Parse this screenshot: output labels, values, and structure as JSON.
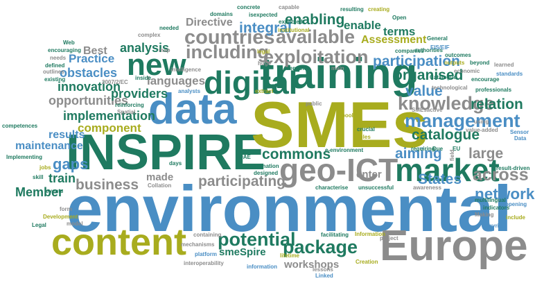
{
  "palette": {
    "blue": "#4a8ec4",
    "teal": "#1f7a60",
    "olive": "#a8ac1e",
    "gray": "#8c8c8c",
    "sky": "#2c88cc"
  },
  "words": [
    {
      "text": "environmental",
      "color": "#4a8ec4",
      "orientation": "horizontal"
    },
    {
      "text": "INSPIRE",
      "color": "#1f7a60",
      "orientation": "horizontal"
    },
    {
      "text": "SMEs",
      "color": "#a8ac1e",
      "orientation": "horizontal"
    },
    {
      "text": "data",
      "color": "#4a8ec4",
      "orientation": "horizontal"
    },
    {
      "text": "Europe",
      "color": "#8c8c8c",
      "orientation": "horizontal"
    },
    {
      "text": "content",
      "color": "#a8ac1e",
      "orientation": "horizontal"
    },
    {
      "text": "training",
      "color": "#1f7a60",
      "orientation": "horizontal"
    },
    {
      "text": "market",
      "color": "#1f7a60",
      "orientation": "horizontal"
    },
    {
      "text": "geo-ICT",
      "color": "#8c8c8c",
      "orientation": "horizontal"
    },
    {
      "text": "digital",
      "color": "#1f7a60",
      "orientation": "horizontal"
    },
    {
      "text": "new",
      "color": "#1f7a60",
      "orientation": "horizontal"
    },
    {
      "text": "exploitation",
      "color": "#8c8c8c",
      "orientation": "horizontal"
    },
    {
      "text": "available",
      "color": "#8c8c8c",
      "orientation": "horizontal"
    },
    {
      "text": "countries",
      "color": "#8c8c8c",
      "orientation": "horizontal"
    },
    {
      "text": "including",
      "color": "#8c8c8c",
      "orientation": "horizontal"
    },
    {
      "text": "knowledge",
      "color": "#8c8c8c",
      "orientation": "horizontal"
    },
    {
      "text": "management",
      "color": "#4a8ec4",
      "orientation": "horizontal"
    },
    {
      "text": "potential",
      "color": "#1f7a60",
      "orientation": "horizontal"
    },
    {
      "text": "package",
      "color": "#1f7a60",
      "orientation": "horizontal"
    },
    {
      "text": "across",
      "color": "#8c8c8c",
      "orientation": "horizontal"
    },
    {
      "text": "network",
      "color": "#4a8ec4",
      "orientation": "horizontal"
    },
    {
      "text": "business",
      "color": "#8c8c8c",
      "orientation": "horizontal"
    },
    {
      "text": "participating",
      "color": "#8c8c8c",
      "orientation": "horizontal"
    },
    {
      "text": "participation",
      "color": "#4a8ec4",
      "orientation": "horizontal"
    },
    {
      "text": "enabling",
      "color": "#1f7a60",
      "orientation": "horizontal"
    },
    {
      "text": "integral",
      "color": "#4a8ec4",
      "orientation": "horizontal"
    },
    {
      "text": "Directive",
      "color": "#8c8c8c",
      "orientation": "horizontal"
    },
    {
      "text": "organised",
      "color": "#1f7a60",
      "orientation": "horizontal"
    },
    {
      "text": "catalogue",
      "color": "#1f7a60",
      "orientation": "horizontal"
    },
    {
      "text": "commons",
      "color": "#1f7a60",
      "orientation": "horizontal"
    },
    {
      "text": "large",
      "color": "#8c8c8c",
      "orientation": "horizontal"
    },
    {
      "text": "States",
      "color": "#4a8ec4",
      "orientation": "horizontal"
    },
    {
      "text": "aiming",
      "color": "#4a8ec4",
      "orientation": "horizontal"
    },
    {
      "text": "value",
      "color": "#4a8ec4",
      "orientation": "horizontal"
    },
    {
      "text": "relation",
      "color": "#1f7a60",
      "orientation": "horizontal"
    },
    {
      "text": "analysis",
      "color": "#1f7a60",
      "orientation": "horizontal"
    },
    {
      "text": "innovation",
      "color": "#1f7a60",
      "orientation": "horizontal"
    },
    {
      "text": "opportunities",
      "color": "#8c8c8c",
      "orientation": "horizontal"
    },
    {
      "text": "implementation",
      "color": "#1f7a60",
      "orientation": "horizontal"
    },
    {
      "text": "component",
      "color": "#a8ac1e",
      "orientation": "horizontal"
    },
    {
      "text": "results",
      "color": "#4a8ec4",
      "orientation": "horizontal"
    },
    {
      "text": "maintenance",
      "color": "#4a8ec4",
      "orientation": "horizontal"
    },
    {
      "text": "gaps",
      "color": "#4a8ec4",
      "orientation": "horizontal"
    },
    {
      "text": "train",
      "color": "#1f7a60",
      "orientation": "horizontal"
    },
    {
      "text": "Member",
      "color": "#1f7a60",
      "orientation": "horizontal"
    },
    {
      "text": "providers",
      "color": "#1f7a60",
      "orientation": "horizontal"
    },
    {
      "text": "languages",
      "color": "#8c8c8c",
      "orientation": "horizontal"
    },
    {
      "text": "obstacles",
      "color": "#4a8ec4",
      "orientation": "horizontal"
    },
    {
      "text": "Practice",
      "color": "#4a8ec4",
      "orientation": "horizontal"
    },
    {
      "text": "Best",
      "color": "#8c8c8c",
      "orientation": "horizontal"
    },
    {
      "text": "terms",
      "color": "#1f7a60",
      "orientation": "horizontal"
    },
    {
      "text": "Assessment",
      "color": "#a8ac1e",
      "orientation": "horizontal"
    },
    {
      "text": "enable",
      "color": "#1f7a60",
      "orientation": "horizontal"
    },
    {
      "text": "workshops",
      "color": "#8c8c8c",
      "orientation": "horizontal"
    },
    {
      "text": "smeSpire",
      "color": "#1f7a60",
      "orientation": "horizontal"
    },
    {
      "text": "made",
      "color": "#8c8c8c",
      "orientation": "horizontal"
    },
    {
      "text": "enter",
      "color": "#8c8c8c",
      "orientation": "horizontal"
    },
    {
      "text": "concrete",
      "color": "#1f7a60",
      "orientation": "horizontal"
    },
    {
      "text": "isexpected",
      "color": "#1f7a60",
      "orientation": "horizontal"
    },
    {
      "text": "capable",
      "color": "#8c8c8c",
      "orientation": "horizontal"
    },
    {
      "text": "resulting",
      "color": "#1f7a60",
      "orientation": "horizontal"
    },
    {
      "text": "creating",
      "color": "#a8ac1e",
      "orientation": "horizontal"
    },
    {
      "text": "domains",
      "color": "#1f7a60",
      "orientation": "horizontal"
    },
    {
      "text": "Open",
      "color": "#1f7a60",
      "orientation": "horizontal"
    },
    {
      "text": "expected",
      "color": "#1f7a60",
      "orientation": "horizontal"
    },
    {
      "text": "institutional",
      "color": "#a8ac1e",
      "orientation": "horizontal"
    },
    {
      "text": "needed",
      "color": "#1f7a60",
      "orientation": "horizontal"
    },
    {
      "text": "complex",
      "color": "#8c8c8c",
      "orientation": "horizontal"
    },
    {
      "text": "General",
      "color": "#1f7a60",
      "orientation": "horizontal"
    },
    {
      "text": "Web",
      "color": "#1f7a60",
      "orientation": "horizontal"
    },
    {
      "text": "encouraging",
      "color": "#1f7a60",
      "orientation": "horizontal"
    },
    {
      "text": "needs",
      "color": "#8c8c8c",
      "orientation": "horizontal"
    },
    {
      "text": "defined",
      "color": "#1f7a60",
      "orientation": "horizontal"
    },
    {
      "text": "outlines",
      "color": "#8c8c8c",
      "orientation": "horizontal"
    },
    {
      "text": "existing",
      "color": "#1f7a60",
      "orientation": "horizontal"
    },
    {
      "text": "map",
      "color": "#8c8c8c",
      "orientation": "horizontal"
    },
    {
      "text": "legal",
      "color": "#a8ac1e",
      "orientation": "horizontal"
    },
    {
      "text": "companies",
      "color": "#1f7a60",
      "orientation": "horizontal"
    },
    {
      "text": "authorities",
      "color": "#1f7a60",
      "orientation": "horizontal"
    },
    {
      "text": "EIS/EIF",
      "color": "#4a8ec4",
      "orientation": "horizontal"
    },
    {
      "text": "outcomes",
      "color": "#1f7a60",
      "orientation": "horizontal"
    },
    {
      "text": "huge",
      "color": "#8c8c8c",
      "orientation": "horizontal"
    },
    {
      "text": "demand",
      "color": "#1f7a60",
      "orientation": "horizontal"
    },
    {
      "text": "main",
      "color": "#8c8c8c",
      "orientation": "horizontal"
    },
    {
      "text": "outputs",
      "color": "#a8ac1e",
      "orientation": "horizontal"
    },
    {
      "text": "beyond",
      "color": "#1f7a60",
      "orientation": "horizontal"
    },
    {
      "text": "learned",
      "color": "#8c8c8c",
      "orientation": "horizontal"
    },
    {
      "text": "intelligence",
      "color": "#8c8c8c",
      "orientation": "horizontal"
    },
    {
      "text": "economic",
      "color": "#8c8c8c",
      "orientation": "horizontal"
    },
    {
      "text": "standards",
      "color": "#4a8ec4",
      "orientation": "horizontal"
    },
    {
      "text": "Catalogue",
      "color": "#1f7a60",
      "orientation": "horizontal"
    },
    {
      "text": "encourage",
      "color": "#1f7a60",
      "orientation": "horizontal"
    },
    {
      "text": "2007/2/EC",
      "color": "#8c8c8c",
      "orientation": "horizontal"
    },
    {
      "text": "inside",
      "color": "#1f7a60",
      "orientation": "horizontal"
    },
    {
      "text": "technological",
      "color": "#8c8c8c",
      "orientation": "horizontal"
    },
    {
      "text": "professionals",
      "color": "#1f7a60",
      "orientation": "horizontal"
    },
    {
      "text": "analysts",
      "color": "#4a8ec4",
      "orientation": "horizontal"
    },
    {
      "text": "extract",
      "color": "#a8ac1e",
      "orientation": "horizontal"
    },
    {
      "text": "public",
      "color": "#8c8c8c",
      "orientation": "horizontal"
    },
    {
      "text": "reinforcing",
      "color": "#1f7a60",
      "orientation": "horizontal"
    },
    {
      "text": "Spatial",
      "color": "#8c8c8c",
      "orientation": "horizontal"
    },
    {
      "text": "competences",
      "color": "#1f7a60",
      "orientation": "horizontal"
    },
    {
      "text": "pools",
      "color": "#a8ac1e",
      "orientation": "horizontal"
    },
    {
      "text": "SMEsactive",
      "color": "#8c8c8c",
      "orientation": "horizontal"
    },
    {
      "text": "using",
      "color": "#8c8c8c",
      "orientation": "horizontal"
    },
    {
      "text": "value-added",
      "color": "#8c8c8c",
      "orientation": "horizontal"
    },
    {
      "text": "crucial",
      "color": "#1f7a60",
      "orientation": "horizontal"
    },
    {
      "text": "Rules",
      "color": "#a8ac1e",
      "orientation": "horizontal"
    },
    {
      "text": "Sensor",
      "color": "#4a8ec4",
      "orientation": "horizontal"
    },
    {
      "text": "Data",
      "color": "#4a8ec4",
      "orientation": "horizontal"
    },
    {
      "text": "DAE",
      "color": "#1f7a60",
      "orientation": "horizontal"
    },
    {
      "text": "Implementing",
      "color": "#1f7a60",
      "orientation": "horizontal"
    },
    {
      "text": "jobs",
      "color": "#a8ac1e",
      "orientation": "horizontal"
    },
    {
      "text": "skill",
      "color": "#1f7a60",
      "orientation": "horizontal"
    },
    {
      "text": "e-environment",
      "color": "#1f7a60",
      "orientation": "horizontal"
    },
    {
      "text": "requiring",
      "color": "#1f7a60",
      "orientation": "horizontal"
    },
    {
      "text": "EU",
      "color": "#1f7a60",
      "orientation": "horizontal"
    },
    {
      "text": "days",
      "color": "#1f7a60",
      "orientation": "horizontal"
    },
    {
      "text": "Dissemination",
      "color": "#1f7a60",
      "orientation": "horizontal"
    },
    {
      "text": "designed",
      "color": "#1f7a60",
      "orientation": "horizontal"
    },
    {
      "text": "Collation",
      "color": "#8c8c8c",
      "orientation": "horizontal"
    },
    {
      "text": "events",
      "color": "#1f7a60",
      "orientation": "horizontal"
    },
    {
      "text": "characterise",
      "color": "#1f7a60",
      "orientation": "horizontal"
    },
    {
      "text": "unsuccessful",
      "color": "#1f7a60",
      "orientation": "horizontal"
    },
    {
      "text": "awareness",
      "color": "#8c8c8c",
      "orientation": "horizontal"
    },
    {
      "text": "result-driven",
      "color": "#1f7a60",
      "orientation": "horizontal"
    },
    {
      "text": "multilingual",
      "color": "#1f7a60",
      "orientation": "horizontal"
    },
    {
      "text": "indicators",
      "color": "#1f7a60",
      "orientation": "horizontal"
    },
    {
      "text": "opening",
      "color": "#4a8ec4",
      "orientation": "horizontal"
    },
    {
      "text": "form",
      "color": "#8c8c8c",
      "orientation": "horizontal"
    },
    {
      "text": "Development",
      "color": "#a8ac1e",
      "orientation": "horizontal"
    },
    {
      "text": "Legal",
      "color": "#1f7a60",
      "orientation": "horizontal"
    },
    {
      "text": "model",
      "color": "#8c8c8c",
      "orientation": "horizontal"
    },
    {
      "text": "Making",
      "color": "#8c8c8c",
      "orientation": "horizontal"
    },
    {
      "text": "include",
      "color": "#a8ac1e",
      "orientation": "horizontal"
    },
    {
      "text": "myriad",
      "color": "#4a8ec4",
      "orientation": "horizontal"
    },
    {
      "text": "containing",
      "color": "#8c8c8c",
      "orientation": "horizontal"
    },
    {
      "text": "mechanisms",
      "color": "#8c8c8c",
      "orientation": "horizontal"
    },
    {
      "text": "facilitating",
      "color": "#1f7a60",
      "orientation": "horizontal"
    },
    {
      "text": "Information",
      "color": "#a8ac1e",
      "orientation": "horizontal"
    },
    {
      "text": "project",
      "color": "#8c8c8c",
      "orientation": "horizontal"
    },
    {
      "text": "platform",
      "color": "#4a8ec4",
      "orientation": "horizontal"
    },
    {
      "text": "interoperability",
      "color": "#8c8c8c",
      "orientation": "horizontal"
    },
    {
      "text": "information",
      "color": "#4a8ec4",
      "orientation": "horizontal"
    },
    {
      "text": "lifetime",
      "color": "#a8ac1e",
      "orientation": "horizontal"
    },
    {
      "text": "lessons",
      "color": "#8c8c8c",
      "orientation": "horizontal"
    },
    {
      "text": "Linked",
      "color": "#4a8ec4",
      "orientation": "horizontal"
    },
    {
      "text": "Creation",
      "color": "#a8ac1e",
      "orientation": "horizontal"
    },
    {
      "text": "field",
      "color": "#8c8c8c",
      "orientation": "vertical"
    },
    {
      "text": "Due",
      "color": "#1f7a60",
      "orientation": "horizontal"
    }
  ]
}
